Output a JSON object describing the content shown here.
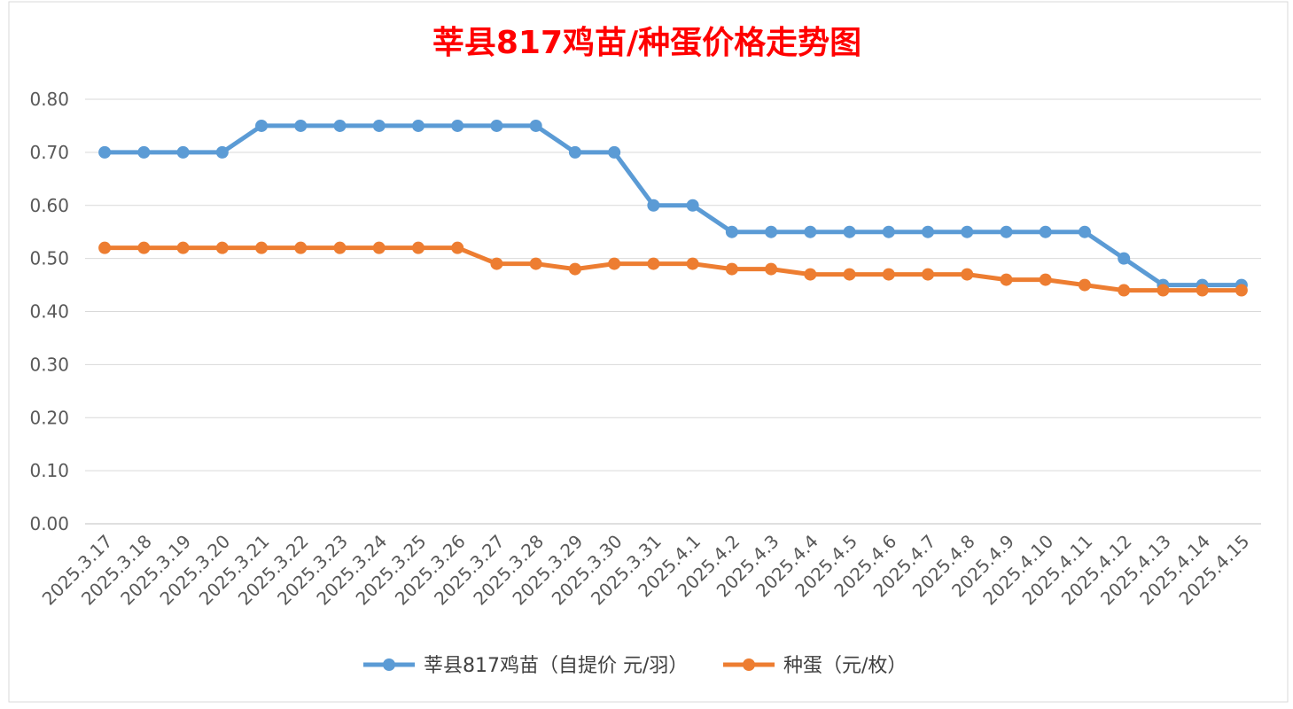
{
  "chart_data": {
    "type": "line",
    "title": "莘县817鸡苗/种蛋价格走势图",
    "title_color": "#ff0000",
    "xlabel": "",
    "ylabel": "",
    "ylim": [
      0,
      0.8
    ],
    "yticks": [
      "0.00",
      "0.10",
      "0.20",
      "0.30",
      "0.40",
      "0.50",
      "0.60",
      "0.70",
      "0.80"
    ],
    "grid": true,
    "legend_position": "bottom",
    "categories": [
      "2025.3.17",
      "2025.3.18",
      "2025.3.19",
      "2025.3.20",
      "2025.3.21",
      "2025.3.22",
      "2025.3.23",
      "2025.3.24",
      "2025.3.25",
      "2025.3.26",
      "2025.3.27",
      "2025.3.28",
      "2025.3.29",
      "2025.3.30",
      "2025.3.31",
      "2025.4.1",
      "2025.4.2",
      "2025.4.3",
      "2025.4.4",
      "2025.4.5",
      "2025.4.6",
      "2025.4.7",
      "2025.4.8",
      "2025.4.9",
      "2025.4.10",
      "2025.4.11",
      "2025.4.12",
      "2025.4.13",
      "2025.4.14",
      "2025.4.15"
    ],
    "series": [
      {
        "name": "莘县817鸡苗（自提价 元/羽）",
        "color": "#5b9bd5",
        "values": [
          0.7,
          0.7,
          0.7,
          0.7,
          0.75,
          0.75,
          0.75,
          0.75,
          0.75,
          0.75,
          0.75,
          0.75,
          0.7,
          0.7,
          0.6,
          0.6,
          0.55,
          0.55,
          0.55,
          0.55,
          0.55,
          0.55,
          0.55,
          0.55,
          0.55,
          0.55,
          0.5,
          0.45,
          0.45,
          0.45
        ]
      },
      {
        "name": "种蛋（元/枚）",
        "color": "#ed7d31",
        "values": [
          0.52,
          0.52,
          0.52,
          0.52,
          0.52,
          0.52,
          0.52,
          0.52,
          0.52,
          0.52,
          0.49,
          0.49,
          0.48,
          0.49,
          0.49,
          0.49,
          0.48,
          0.48,
          0.47,
          0.47,
          0.47,
          0.47,
          0.47,
          0.46,
          0.46,
          0.45,
          0.44,
          0.44,
          0.44,
          0.44
        ]
      }
    ]
  }
}
